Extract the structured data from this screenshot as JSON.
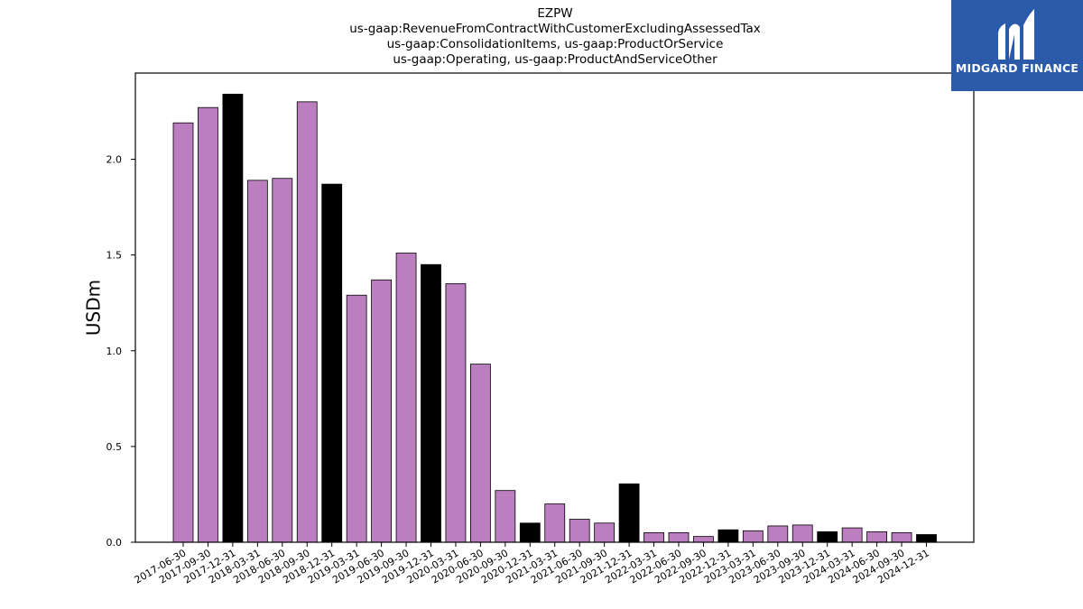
{
  "chart_data": {
    "type": "bar",
    "title": [
      "EZPW",
      "us-gaap:RevenueFromContractWithCustomerExcludingAssessedTax",
      "us-gaap:ConsolidationItems, us-gaap:ProductOrService",
      "us-gaap:Operating, us-gaap:ProductAndServiceOther"
    ],
    "ylabel": "USDm",
    "xlabel": "",
    "ylim": [
      0,
      2.45
    ],
    "yticks": [
      "0.0",
      "0.5",
      "1.0",
      "1.5",
      "2.0"
    ],
    "grid": false,
    "legend": "none",
    "colors": {
      "quarter": "#bb7fbf",
      "year_end": "#000000",
      "edge": "#000000"
    },
    "categories": [
      "2017-06-30",
      "2017-09-30",
      "2017-12-31",
      "2018-03-31",
      "2018-06-30",
      "2018-09-30",
      "2018-12-31",
      "2019-03-31",
      "2019-06-30",
      "2019-09-30",
      "2019-12-31",
      "2020-03-31",
      "2020-06-30",
      "2020-09-30",
      "2020-12-31",
      "2021-03-31",
      "2021-06-30",
      "2021-09-30",
      "2021-12-31",
      "2022-03-31",
      "2022-06-30",
      "2022-09-30",
      "2022-12-31",
      "2023-03-31",
      "2023-06-30",
      "2023-09-30",
      "2023-12-31",
      "2024-03-31",
      "2024-06-30",
      "2024-09-30",
      "2024-12-31"
    ],
    "values": [
      2.19,
      2.27,
      2.34,
      1.89,
      1.9,
      2.3,
      1.87,
      1.29,
      1.37,
      1.51,
      1.45,
      1.35,
      0.93,
      0.27,
      0.1,
      0.2,
      0.12,
      0.1,
      0.305,
      0.05,
      0.05,
      0.03,
      0.065,
      0.06,
      0.085,
      0.09,
      0.055,
      0.075,
      0.055,
      0.05,
      0.04
    ]
  },
  "logo": {
    "text": "MIDGARD FINANCE",
    "background": "#2b5aab"
  }
}
